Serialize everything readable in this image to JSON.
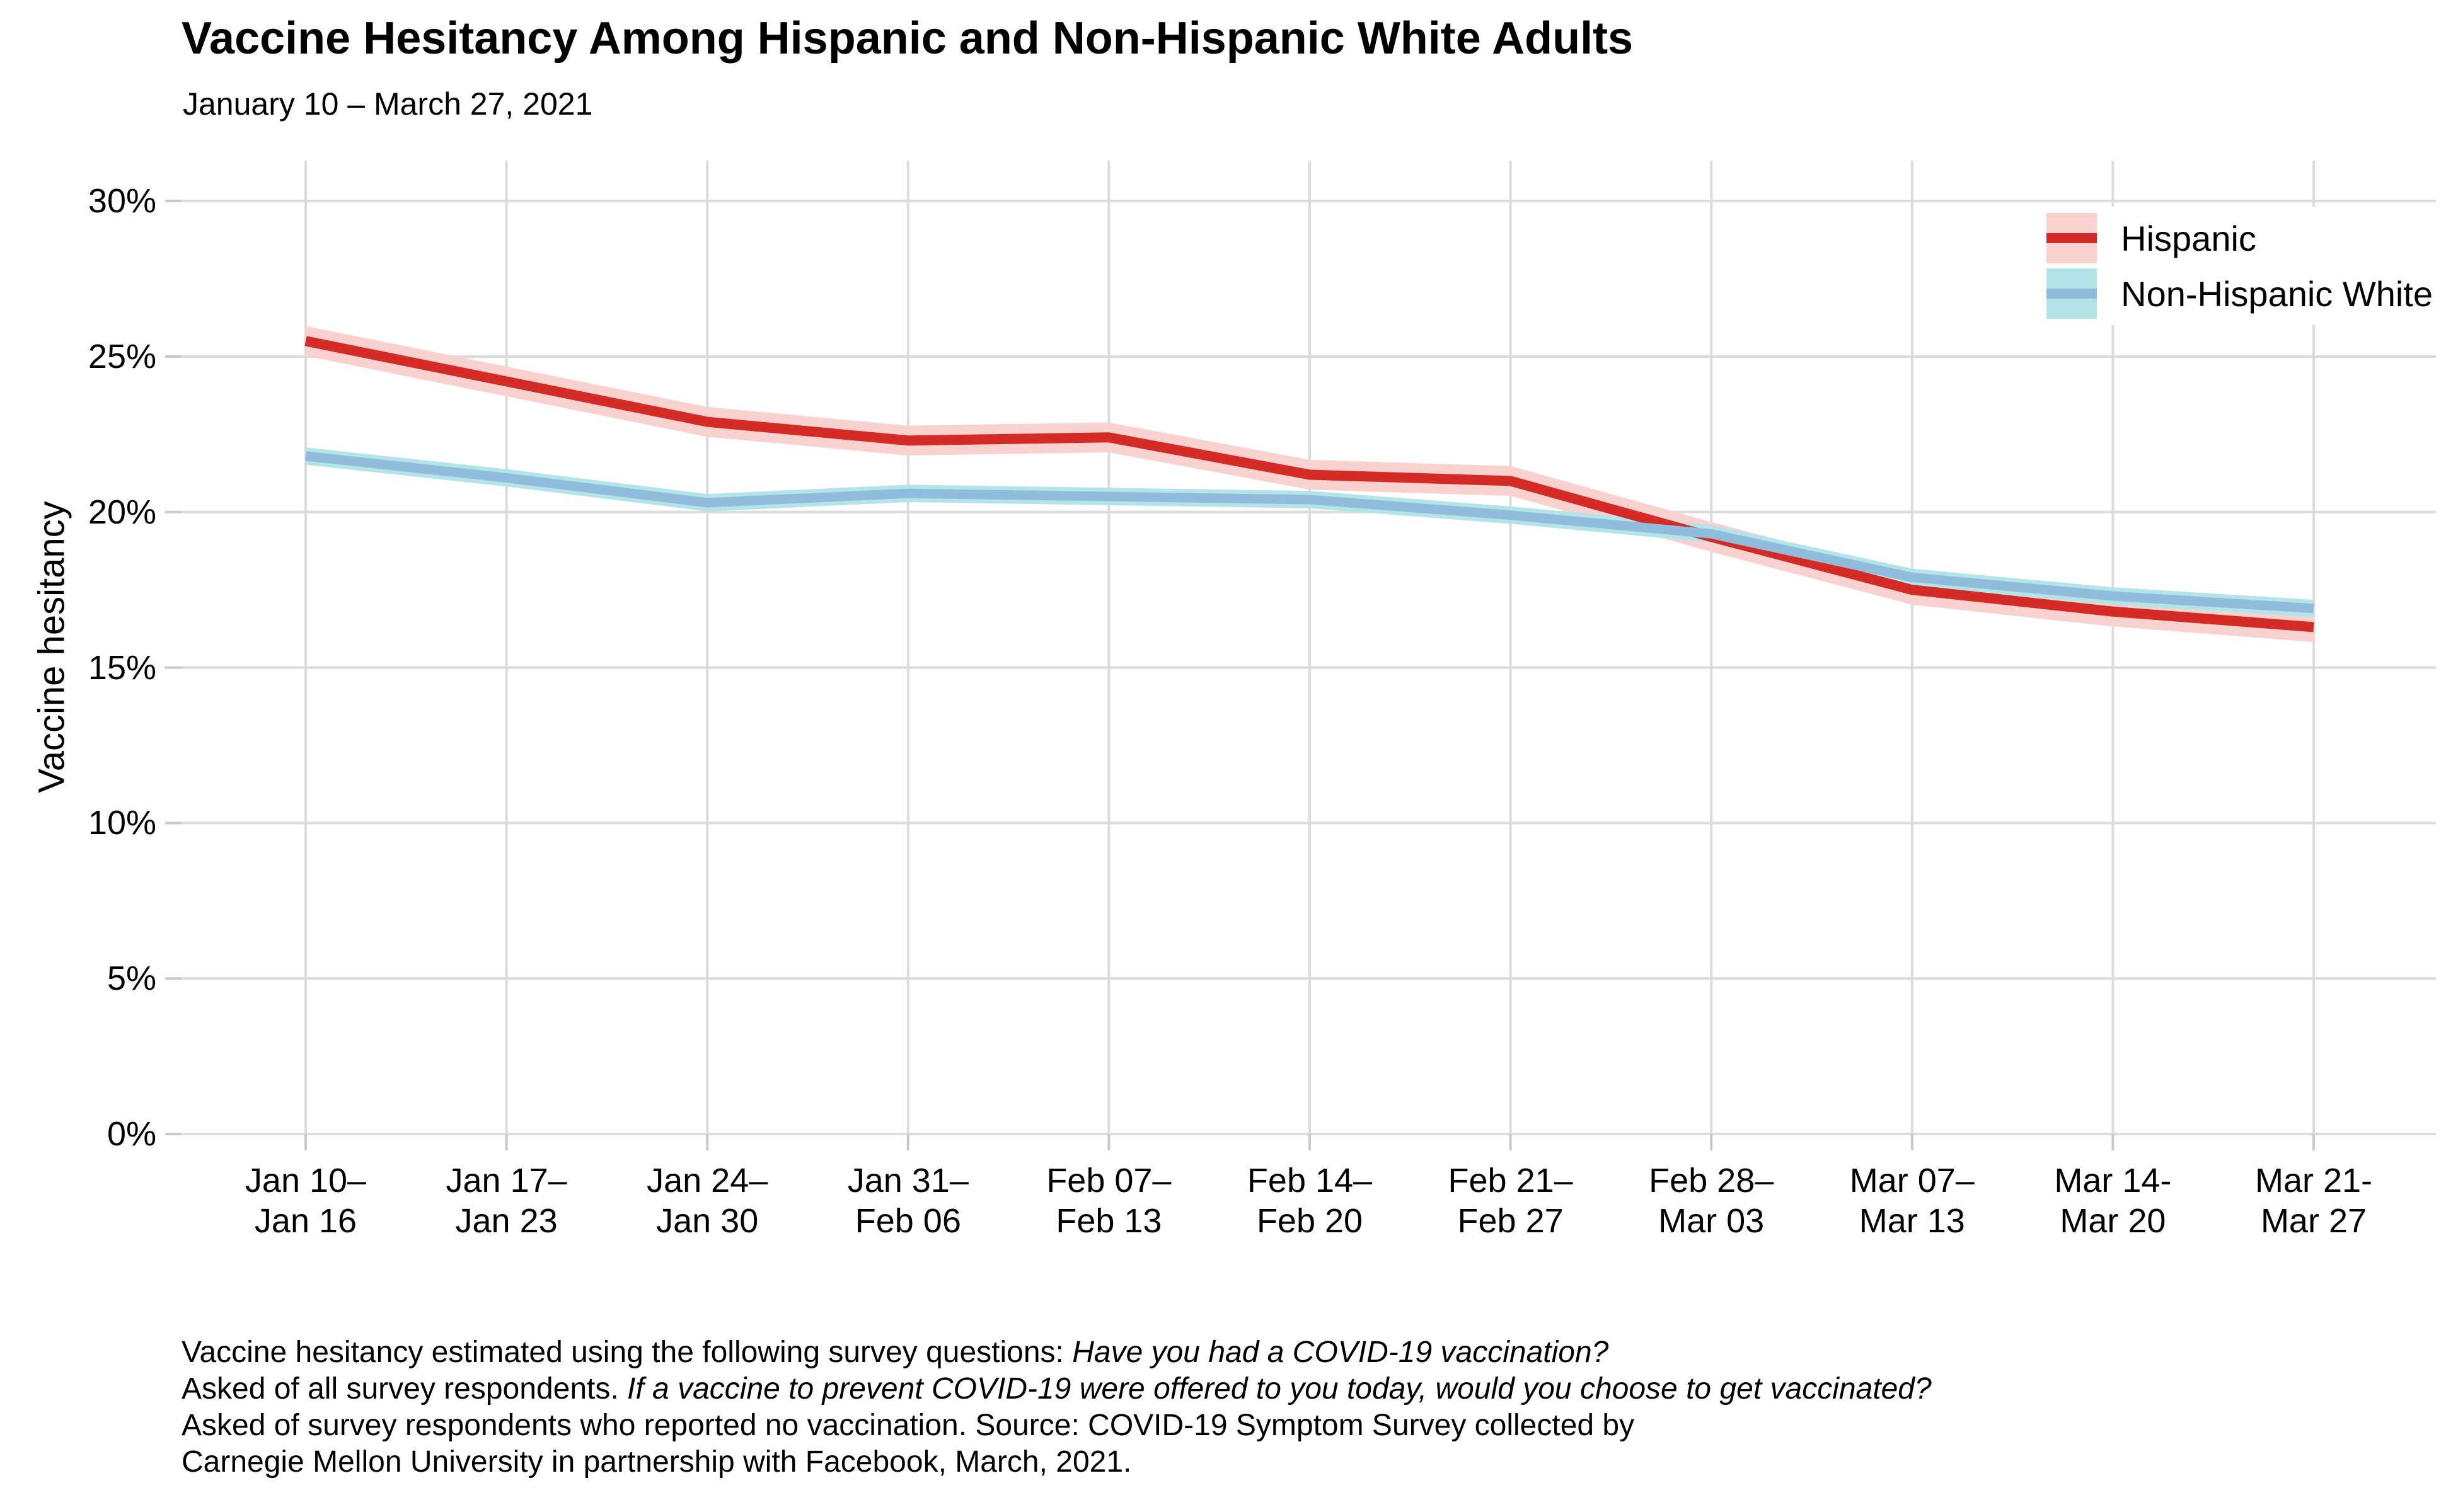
{
  "title": "Vaccine Hesitancy Among Hispanic and Non-Hispanic White Adults",
  "subtitle": "January 10 – March 27, 2021",
  "chart_data": {
    "type": "line",
    "title": "Vaccine Hesitancy Among Hispanic and Non-Hispanic White Adults",
    "subtitle": "January 10 – March 27, 2021",
    "xlabel": "",
    "ylabel": "Vaccine hesitancy",
    "x_categories": [
      [
        "Jan 10–",
        "Jan 16"
      ],
      [
        "Jan 17–",
        "Jan 23"
      ],
      [
        "Jan 24–",
        "Jan 30"
      ],
      [
        "Jan 31–",
        "Feb 06"
      ],
      [
        "Feb 07–",
        "Feb 13"
      ],
      [
        "Feb 14–",
        "Feb 20"
      ],
      [
        "Feb 21–",
        "Feb 27"
      ],
      [
        "Feb 28–",
        "Mar 03"
      ],
      [
        "Mar 07–",
        "Mar 13"
      ],
      [
        "Mar 14-",
        "Mar 20"
      ],
      [
        "Mar 21-",
        "Mar 27"
      ]
    ],
    "series": [
      {
        "name": "Hispanic",
        "values": [
          25.5,
          24.2,
          22.9,
          22.3,
          22.4,
          21.2,
          21.0,
          19.2,
          17.5,
          16.8,
          16.3
        ],
        "ci_halfwidth": 0.48,
        "line_color": "#D42B26",
        "band_color": "#F9D1CF",
        "line_width": 16
      },
      {
        "name": "Non-Hispanic White",
        "values": [
          21.8,
          21.1,
          20.3,
          20.6,
          20.5,
          20.4,
          19.9,
          19.3,
          17.9,
          17.3,
          16.9
        ],
        "ci_halfwidth": 0.28,
        "line_color": "#8FBDDB",
        "band_color": "#B2E4E8",
        "line_width": 15
      }
    ],
    "y_ticks": [
      "0%",
      "5%",
      "10%",
      "15%",
      "20%",
      "25%",
      "30%"
    ],
    "y_tick_values": [
      0,
      5,
      10,
      15,
      20,
      25,
      30
    ],
    "ylim": [
      0,
      31.3
    ],
    "grid": true,
    "grid_color": "#DCDCDC",
    "tick_color": "#C9C9C9",
    "legend_position": "top-right"
  },
  "caption": {
    "lines": [
      [
        {
          "text": "Vaccine hesitancy estimated using the following survey questions: ",
          "italic": false
        },
        {
          "text": "Have you had a COVID-19 vaccination?",
          "italic": true
        }
      ],
      [
        {
          "text": "Asked of all survey respondents. ",
          "italic": false
        },
        {
          "text": "If a vaccine to prevent COVID-19 were offered to you today, would you choose to get vaccinated?",
          "italic": true
        }
      ],
      [
        {
          "text": "Asked of survey respondents who reported no vaccination. Source: COVID-19 Symptom Survey collected by",
          "italic": false
        }
      ],
      [
        {
          "text": "Carnegie Mellon University in partnership with Facebook, March, 2021.",
          "italic": false
        }
      ]
    ]
  }
}
